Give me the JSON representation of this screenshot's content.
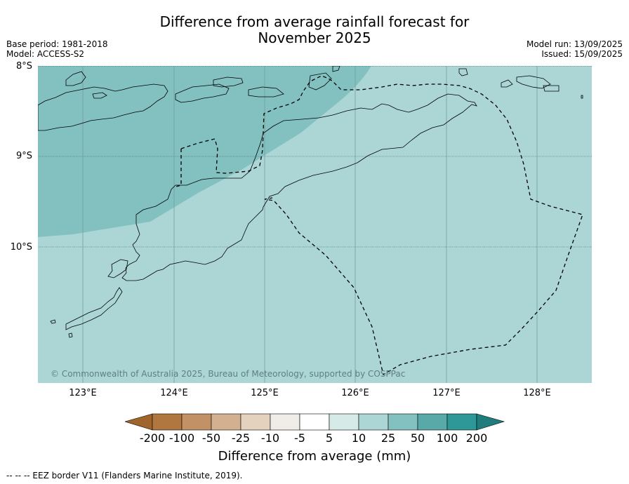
{
  "title": {
    "line1": "Difference from average rainfall forecast for",
    "line2": "November 2025"
  },
  "meta": {
    "base_period": "Base period: 1981-2018",
    "model": "Model: ACCESS-S2",
    "model_run": "Model run: 13/09/2025",
    "issued": "Issued: 15/09/2025"
  },
  "map": {
    "lat_labels": [
      "8°S",
      "9°S",
      "10°S"
    ],
    "lon_labels": [
      "123°E",
      "124°E",
      "125°E",
      "126°E",
      "127°E",
      "128°E"
    ],
    "copyright": "© Commonwealth of Australia 2025, Bureau of Meteorology, supported by COSPPac",
    "fill_colors": {
      "band_5_10": "#aad6d6",
      "band_10_25": "#acd6d6",
      "band_25_50": "#83c1c1"
    }
  },
  "colorbar": {
    "label": "Difference from average (mm)",
    "ticks": [
      "-200",
      "-100",
      "-50",
      "-25",
      "-10",
      "-5",
      "5",
      "10",
      "25",
      "50",
      "100",
      "200"
    ],
    "colors": [
      "#a0642d",
      "#b07840",
      "#c29266",
      "#d3b090",
      "#e4d2be",
      "#f0ece8",
      "#ffffff",
      "#d6ebe8",
      "#acd6d6",
      "#83c1c1",
      "#59a9a9",
      "#2e9898",
      "#1f7d7d"
    ]
  },
  "footer": {
    "eez_note": "--  --  -- EEZ border V11 (Flanders Marine Institute, 2019)."
  }
}
